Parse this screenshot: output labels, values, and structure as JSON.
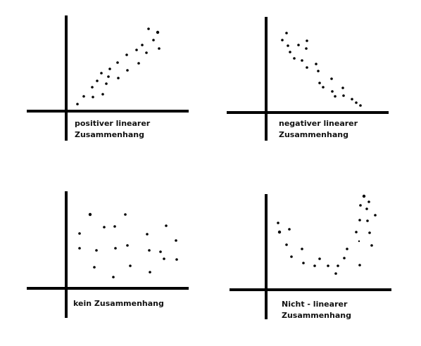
{
  "panels": [
    {
      "label_line1": "positiver linearer",
      "label_line2": "Zusammenhang"
    },
    {
      "label_line1": "negativer linearer",
      "label_line2": "Zusammenhang"
    },
    {
      "label_line1": "kein Zusammenhang",
      "label_line2": ""
    },
    {
      "label_line1": "Nicht - linearer",
      "label_line2": "Zusammenhang"
    }
  ],
  "colors": {
    "axis": "#000000",
    "dot": "#000000",
    "background": "#ffffff"
  }
}
